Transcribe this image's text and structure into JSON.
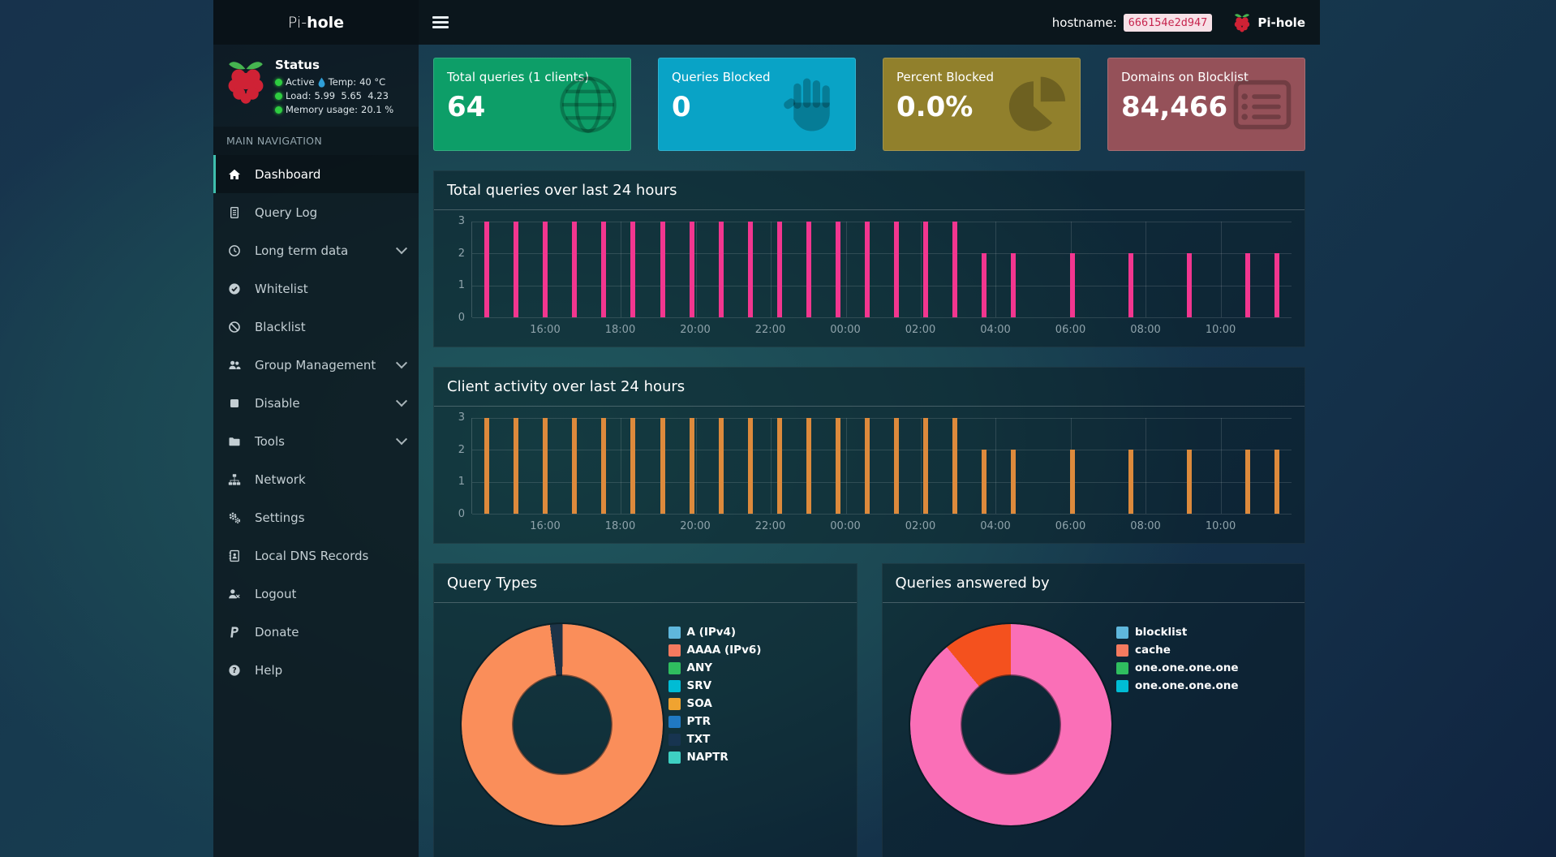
{
  "theme": {
    "accent": "#3fbfad"
  },
  "navbar": {
    "brand_prefix": "Pi-",
    "brand_suffix": "hole",
    "hostname_label": "hostname:",
    "hostname_value": "666154e2d947",
    "account_label": "Pi-hole"
  },
  "sidebar": {
    "status": {
      "title": "Status",
      "active_label": "Active",
      "temp_label": "Temp:",
      "temp_value": "40 °C",
      "load_label": "Load:",
      "load_value": "5.99  5.65  4.23",
      "memory_label": "Memory usage:",
      "memory_value": "20.1 %"
    },
    "nav_header": "MAIN NAVIGATION",
    "items": [
      {
        "label": "Dashboard",
        "active": true
      },
      {
        "label": "Query Log"
      },
      {
        "label": "Long term data",
        "has_submenu": true
      },
      {
        "label": "Whitelist"
      },
      {
        "label": "Blacklist"
      },
      {
        "label": "Group Management",
        "has_submenu": true
      },
      {
        "label": "Disable",
        "has_submenu": true
      },
      {
        "label": "Tools",
        "has_submenu": true
      },
      {
        "label": "Network"
      },
      {
        "label": "Settings"
      },
      {
        "label": "Local DNS Records"
      },
      {
        "label": "Logout"
      },
      {
        "label": "Donate"
      },
      {
        "label": "Help"
      }
    ]
  },
  "cards": [
    {
      "title": "Total queries (1 clients)",
      "value": "64",
      "color": "#0d9e68"
    },
    {
      "title": "Queries Blocked",
      "value": "0",
      "color": "#09a3c6"
    },
    {
      "title": "Percent Blocked",
      "value": "0.0%",
      "color": "#91802c"
    },
    {
      "title": "Domains on Blocklist",
      "value": "84,466",
      "color": "#955159"
    }
  ],
  "chart_data": [
    {
      "type": "bar",
      "title": "Total queries over last 24 hours",
      "bar_color": "#f2368f",
      "x_ticks": [
        "16:00",
        "18:00",
        "20:00",
        "22:00",
        "00:00",
        "02:00",
        "04:00",
        "06:00",
        "08:00",
        "10:00"
      ],
      "y_ticks": [
        "3",
        "2",
        "1",
        "0"
      ],
      "ylim": [
        0,
        3
      ],
      "grid": true,
      "values": [
        3,
        3,
        3,
        3,
        3,
        3,
        3,
        3,
        3,
        3,
        3,
        3,
        3,
        3,
        3,
        3,
        3,
        2,
        2,
        0,
        2,
        0,
        2,
        0,
        2,
        0,
        2,
        2
      ]
    },
    {
      "type": "bar",
      "title": "Client activity over last 24 hours",
      "bar_color": "#dd8a3c",
      "x_ticks": [
        "16:00",
        "18:00",
        "20:00",
        "22:00",
        "00:00",
        "02:00",
        "04:00",
        "06:00",
        "08:00",
        "10:00"
      ],
      "y_ticks": [
        "3",
        "2",
        "1",
        "0"
      ],
      "ylim": [
        0,
        3
      ],
      "grid": true,
      "values": [
        3,
        3,
        3,
        3,
        3,
        3,
        3,
        3,
        3,
        3,
        3,
        3,
        3,
        3,
        3,
        3,
        3,
        2,
        2,
        0,
        2,
        0,
        2,
        0,
        2,
        0,
        2,
        2
      ]
    },
    {
      "type": "doughnut",
      "title": "Query Types",
      "start_angle": 353,
      "slices": [
        {
          "value": 2,
          "color": "#1d3347"
        },
        {
          "value": 98,
          "color": "#fa8e5a"
        }
      ],
      "legend_position": "right",
      "legend": [
        {
          "label": "A (IPv4)",
          "color": "#5fb7dc"
        },
        {
          "label": "AAAA (IPv6)",
          "color": "#f47a5f"
        },
        {
          "label": "ANY",
          "color": "#2fbe5f"
        },
        {
          "label": "SRV",
          "color": "#00bcd4"
        },
        {
          "label": "SOA",
          "color": "#f0a330"
        },
        {
          "label": "PTR",
          "color": "#2079c3"
        },
        {
          "label": "TXT",
          "color": "#173450"
        },
        {
          "label": "NAPTR",
          "color": "#3ed0c2"
        }
      ]
    },
    {
      "type": "doughnut",
      "title": "Queries answered by",
      "start_angle": 0,
      "slices": [
        {
          "value": 89,
          "color": "#fa6fb7"
        },
        {
          "value": 11,
          "color": "#f4511e"
        }
      ],
      "legend_position": "right",
      "legend": [
        {
          "label": "blocklist",
          "color": "#5fb7dc"
        },
        {
          "label": "cache",
          "color": "#f47a5f"
        },
        {
          "label": "one.one.one.one",
          "color": "#2fbe5f"
        },
        {
          "label": "one.one.one.one",
          "color": "#00bcd4"
        }
      ]
    }
  ]
}
